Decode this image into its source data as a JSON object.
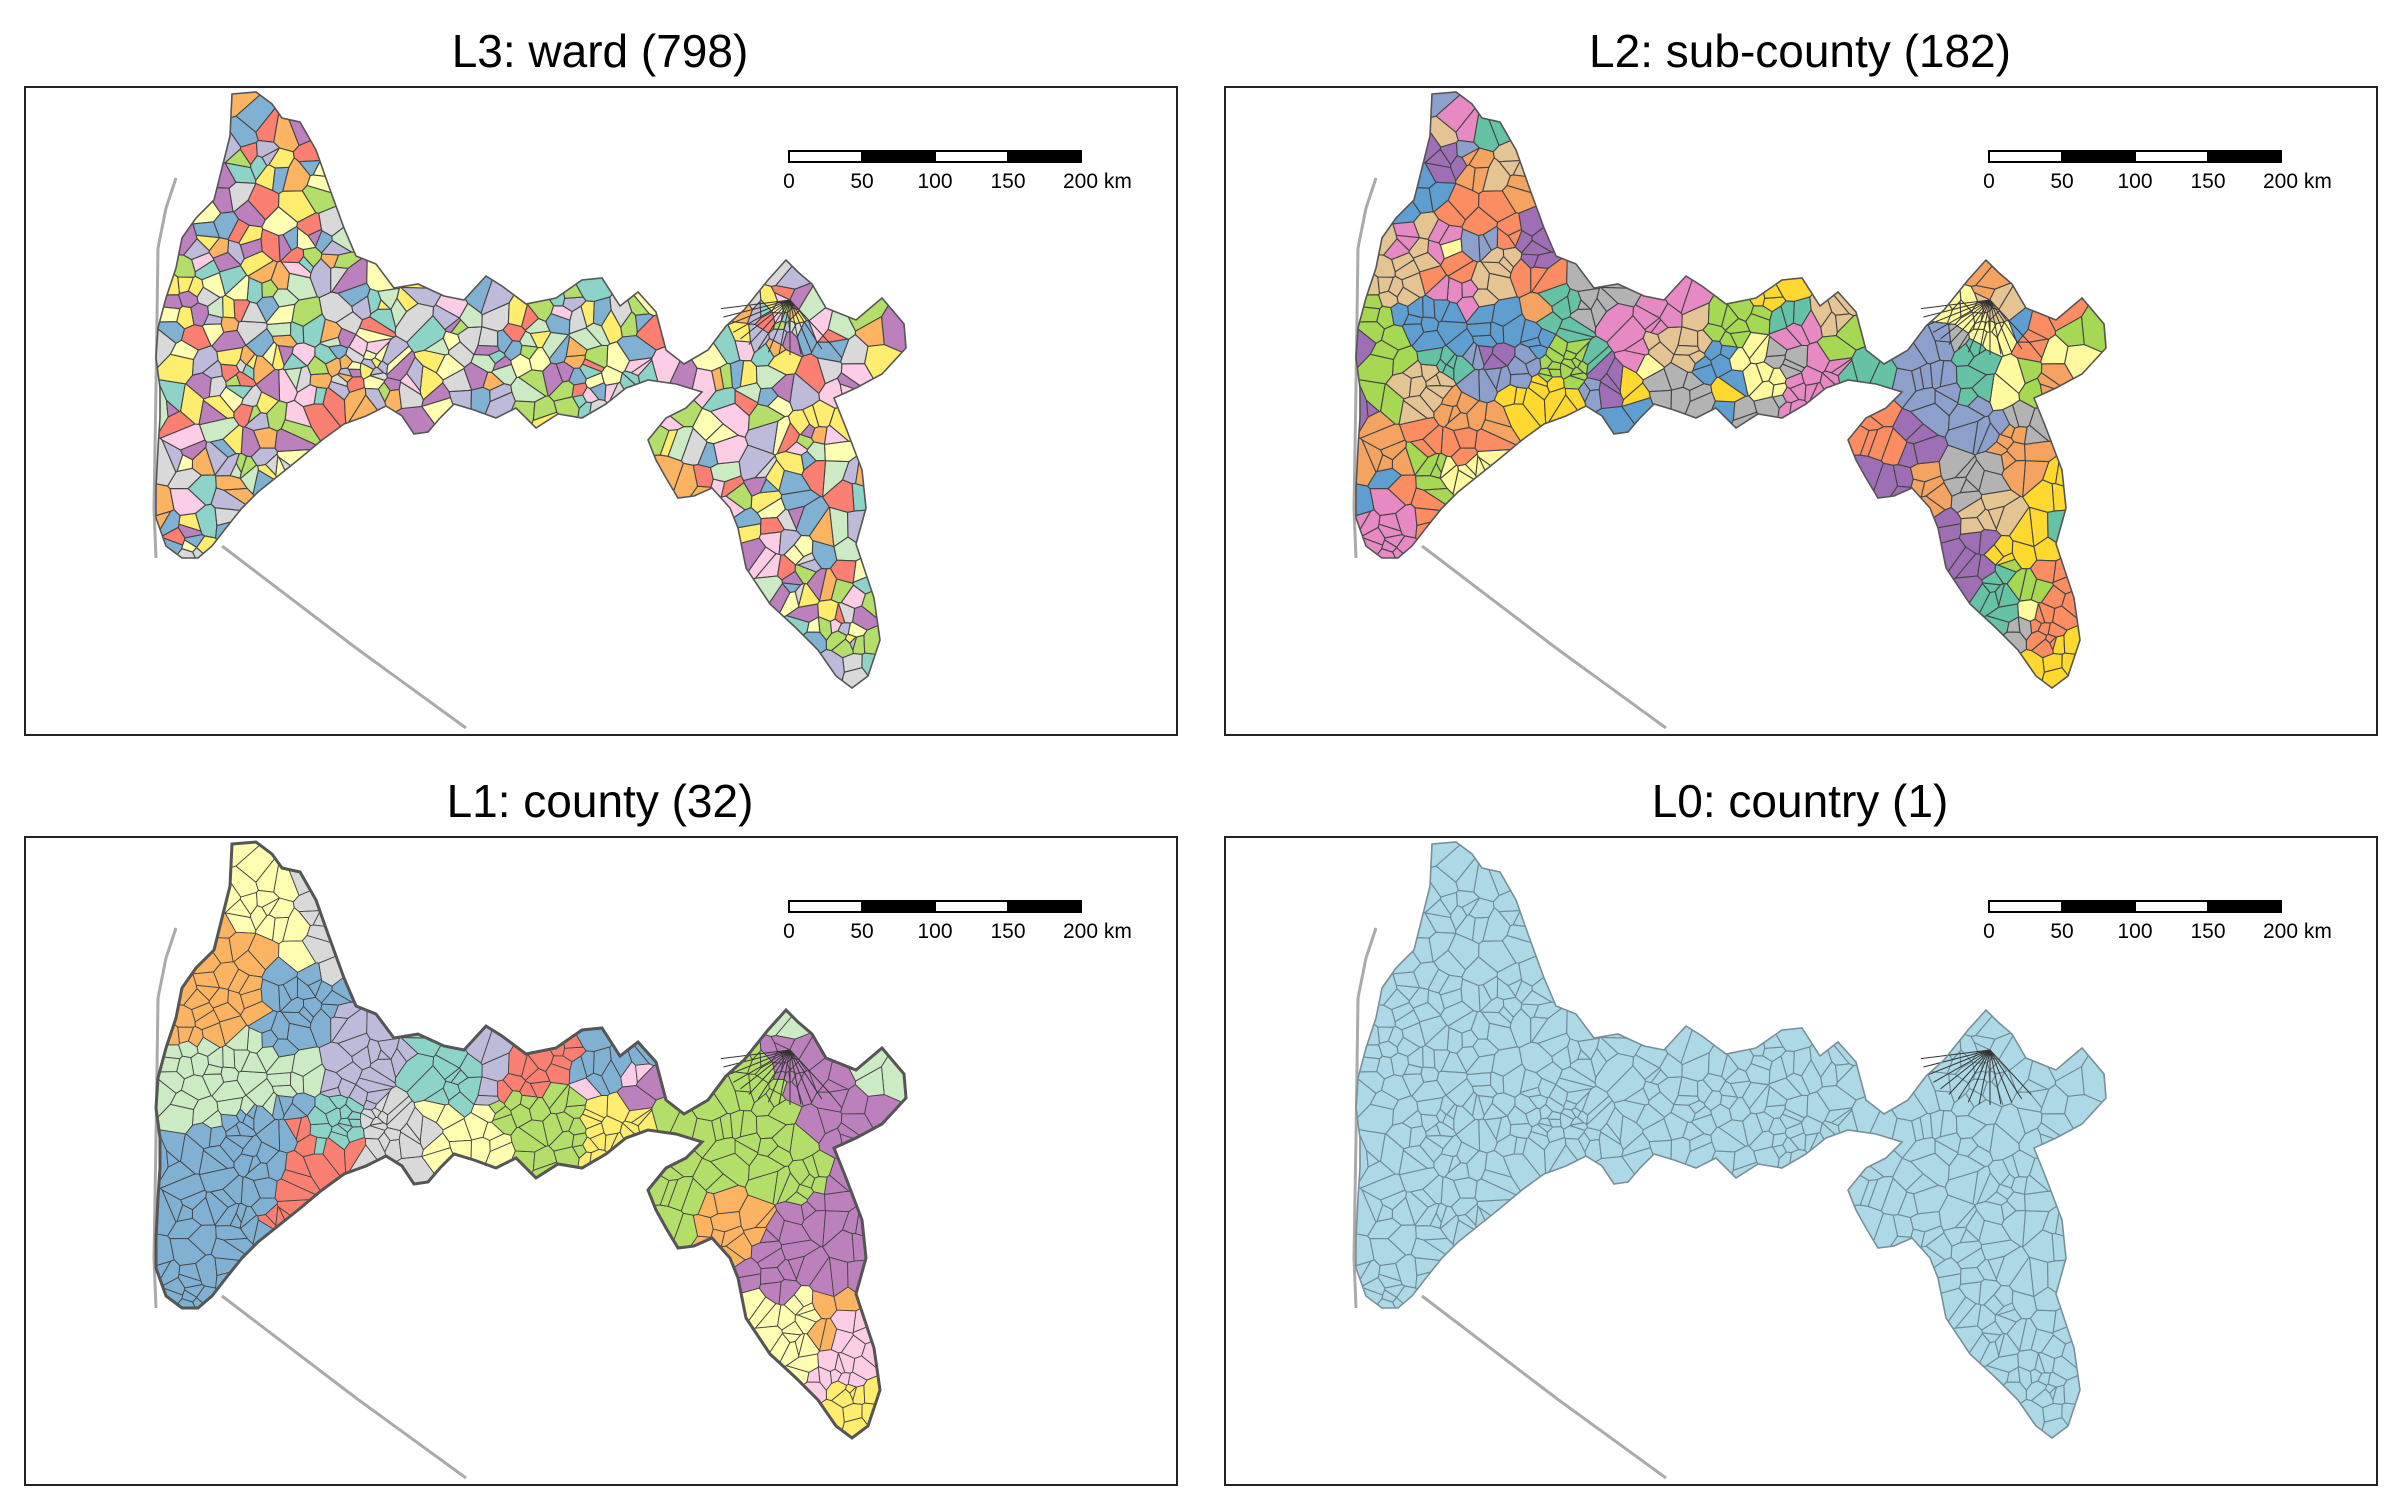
{
  "panels": [
    {
      "title": "L3: ward (798)",
      "palette": [
        "#8dd3c7",
        "#ffffb3",
        "#bebada",
        "#fb8072",
        "#80b1d3",
        "#fdb462",
        "#b3de69",
        "#fccde5",
        "#d9d9d9",
        "#bc80bd",
        "#ccebc5",
        "#ffed6f"
      ],
      "theme": "fine"
    },
    {
      "title": "L2: sub-county (182)",
      "palette": [
        "#66c2a5",
        "#fc8d62",
        "#8da0cb",
        "#e78ac3",
        "#a6d854",
        "#ffd92f",
        "#e5c494",
        "#b3b3b3",
        "#9e6fb5",
        "#5f9ed1",
        "#f4a460",
        "#fffa9e"
      ],
      "theme": "medium"
    },
    {
      "title": "L1: county (32)",
      "palette": [
        "#b3de69",
        "#fffdb0",
        "#bc80bd",
        "#fb8072",
        "#fdb462",
        "#80b1d3",
        "#fccde5",
        "#ccebc5",
        "#bebada",
        "#d9d9d9",
        "#ffed6f",
        "#8dd3c7"
      ],
      "theme": "coarse"
    },
    {
      "title": "L0: country (1)",
      "palette": [
        "#add8e6"
      ],
      "theme": "single"
    }
  ],
  "scalebar": {
    "labels": [
      "0",
      "50",
      "100",
      "150",
      "200 km"
    ]
  },
  "colors": {
    "outline": "#555555",
    "coast": "#aaaaaa",
    "single_fill": "#add8e6"
  }
}
